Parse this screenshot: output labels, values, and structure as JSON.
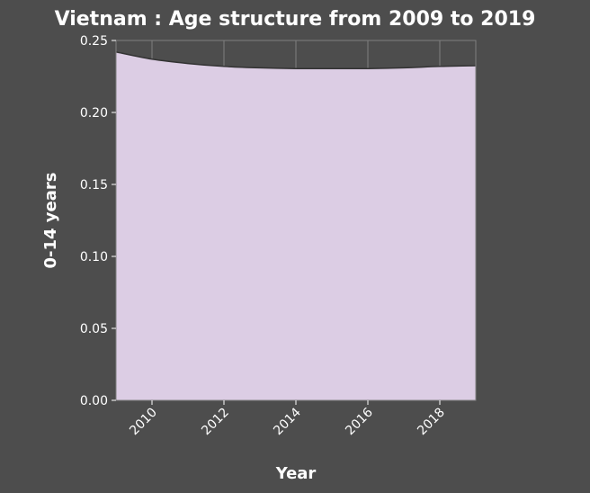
{
  "chart_data": {
    "type": "area",
    "title": "Vietnam : Age structure from 2009 to 2019",
    "xlabel": "Year",
    "ylabel": "0-14 years",
    "x": [
      2009,
      2010,
      2011,
      2012,
      2013,
      2014,
      2015,
      2016,
      2017,
      2018,
      2019
    ],
    "series": [
      {
        "values": [
          0.242,
          0.237,
          0.234,
          0.232,
          0.231,
          0.2305,
          0.2305,
          0.2305,
          0.231,
          0.232,
          0.2325
        ]
      }
    ],
    "xlim": [
      2009,
      2019
    ],
    "ylim": [
      0,
      0.25
    ],
    "xticks": [
      2010,
      2012,
      2014,
      2016,
      2018
    ],
    "xtick_labels": [
      "2010",
      "2012",
      "2014",
      "2016",
      "2018"
    ],
    "yticks": [
      0,
      0.05,
      0.1,
      0.15,
      0.2,
      0.25
    ],
    "ytick_labels": [
      "0.00",
      "0.05",
      "0.10",
      "0.15",
      "0.20",
      "0.25"
    ],
    "grid": true,
    "colors": {
      "background": "#4d4d4d",
      "fill": "#dccde4",
      "line": "#333333",
      "grid": "#7f7f7f",
      "text": "#ffffff"
    }
  }
}
